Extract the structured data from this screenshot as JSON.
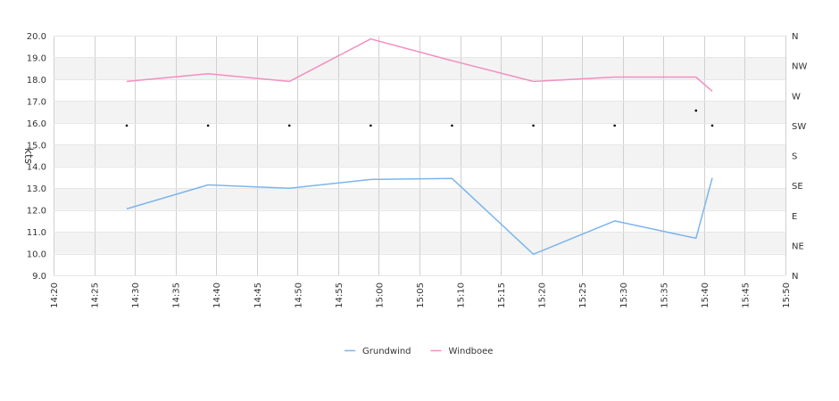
{
  "chart_data": {
    "type": "line",
    "title": "",
    "ylabel": "kts",
    "xlabel": "",
    "ylim": [
      9.0,
      20.0
    ],
    "y_ticks": [
      "9.0",
      "10.0",
      "11.0",
      "12.0",
      "13.0",
      "14.0",
      "15.0",
      "16.0",
      "17.0",
      "18.0",
      "19.0",
      "20.0"
    ],
    "x_ticks": [
      "14:20",
      "14:25",
      "14:30",
      "14:35",
      "14:40",
      "14:45",
      "14:50",
      "14:55",
      "15:00",
      "15:05",
      "15:10",
      "15:15",
      "15:20",
      "15:25",
      "15:30",
      "15:35",
      "15:40",
      "15:45",
      "15:50"
    ],
    "x_range": [
      "14:20",
      "15:50"
    ],
    "direction_axis_labels": [
      "N",
      "NE",
      "E",
      "SE",
      "S",
      "SW",
      "W",
      "NW",
      "N"
    ],
    "grid": true,
    "legend_position": "bottom-center",
    "series": [
      {
        "name": "Grundwind",
        "color": "#7cb5ec",
        "points": [
          {
            "x": "14:29",
            "y": 12.05
          },
          {
            "x": "14:39",
            "y": 13.15
          },
          {
            "x": "14:49",
            "y": 13.0
          },
          {
            "x": "14:59",
            "y": 13.4
          },
          {
            "x": "15:09",
            "y": 13.45
          },
          {
            "x": "15:19",
            "y": 9.97
          },
          {
            "x": "15:29",
            "y": 11.5
          },
          {
            "x": "15:39",
            "y": 10.7
          },
          {
            "x": "15:41",
            "y": 13.47
          }
        ]
      },
      {
        "name": "Windboee",
        "color": "#f28fc0",
        "points": [
          {
            "x": "14:29",
            "y": 17.9
          },
          {
            "x": "14:39",
            "y": 18.25
          },
          {
            "x": "14:49",
            "y": 17.9
          },
          {
            "x": "14:59",
            "y": 19.85
          },
          {
            "x": "15:09",
            "y": 18.85
          },
          {
            "x": "15:19",
            "y": 17.9
          },
          {
            "x": "15:29",
            "y": 18.1
          },
          {
            "x": "15:39",
            "y": 18.1
          },
          {
            "x": "15:41",
            "y": 17.45
          }
        ]
      }
    ],
    "direction_points": [
      {
        "x": "14:29",
        "deg": 225
      },
      {
        "x": "14:39",
        "deg": 225
      },
      {
        "x": "14:49",
        "deg": 225
      },
      {
        "x": "14:59",
        "deg": 225
      },
      {
        "x": "15:09",
        "deg": 225
      },
      {
        "x": "15:19",
        "deg": 225
      },
      {
        "x": "15:29",
        "deg": 225
      },
      {
        "x": "15:39",
        "deg": 247.5
      },
      {
        "x": "15:41",
        "deg": 225
      }
    ]
  }
}
